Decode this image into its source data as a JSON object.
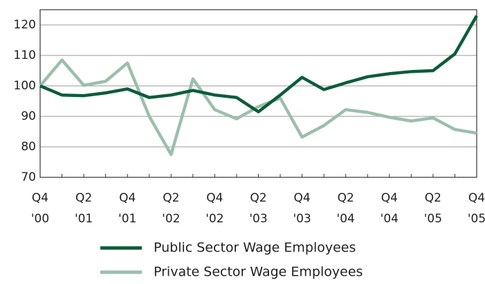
{
  "chart_data": {
    "type": "line",
    "categories": [
      "Q4 '00",
      null,
      "Q2 '01",
      null,
      "Q4 '01",
      null,
      "Q2 '02",
      null,
      "Q4 '02",
      null,
      "Q2 '03",
      null,
      "Q4 '03",
      null,
      "Q2 '04",
      null,
      "Q4 '04",
      null,
      "Q2 '05",
      null,
      "Q4 '05"
    ],
    "series": [
      {
        "name": "Public Sector Wage Employees",
        "color": "#0d5c3a",
        "values": [
          100,
          97,
          96.8,
          97.7,
          99,
          96.2,
          97,
          98.5,
          97,
          96.2,
          91.5,
          97,
          102.8,
          98.8,
          101,
          103,
          104,
          104.7,
          105,
          110.5,
          123
        ]
      },
      {
        "name": "Private Sector Wage Employees",
        "color": "#9bbfab",
        "values": [
          100,
          108.5,
          100.2,
          101.5,
          107.5,
          90,
          77.5,
          102.3,
          92.2,
          89.2,
          93.2,
          96,
          83.2,
          87,
          92.2,
          91.3,
          89.7,
          88.5,
          89.5,
          85.7,
          84.5
        ]
      }
    ],
    "ylim": [
      70,
      125
    ],
    "yticks": [
      70,
      80,
      90,
      100,
      110,
      120
    ],
    "grid": true
  }
}
